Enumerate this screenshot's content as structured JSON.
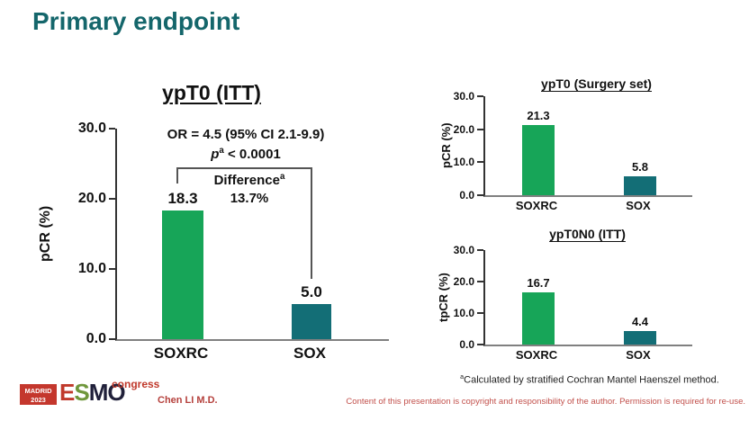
{
  "slide": {
    "title": "Primary endpoint",
    "presenter": "Chen LI M.D.",
    "copyright_notice": "Content of this presentation is copyright and responsibility of the author. Permission is required for re-use.",
    "footnote": {
      "sup": "a",
      "text": "Calculated by stratified Cochran Mantel Haenszel method."
    },
    "logo": {
      "venue": "MADRID",
      "year": "2023",
      "letters": [
        "E",
        "S",
        "M",
        "O"
      ],
      "event": "congress"
    }
  },
  "colors": {
    "heading_teal": "#14666b",
    "soxrc_green": "#17a558",
    "sox_teal": "#136e76",
    "footer_red": "#b5403c"
  },
  "chart_data": [
    {
      "type": "bar",
      "title": "ypT0 (ITT)",
      "ylabel": "pCR (%)",
      "categories": [
        "SOXRC",
        "SOX"
      ],
      "values": [
        18.3,
        5.0
      ],
      "bar_colors": [
        "#17a558",
        "#136e76"
      ],
      "yticks": [
        "30.0",
        "20.0",
        "10.0",
        "0.0"
      ],
      "ylim": [
        0,
        30
      ],
      "grid": false,
      "annotations": {
        "or_line": "OR = 4.5 (95% CI 2.1-9.9)",
        "p_var": "p",
        "p_sup": "a",
        "p_rest": " < 0.0001",
        "difference_label": "Difference",
        "difference_sup": "a",
        "difference_value": "13.7%"
      }
    },
    {
      "type": "bar",
      "title": "ypT0 (Surgery set)",
      "ylabel": "pCR (%)",
      "categories": [
        "SOXRC",
        "SOX"
      ],
      "values": [
        21.3,
        5.8
      ],
      "bar_colors": [
        "#17a558",
        "#136e76"
      ],
      "yticks": [
        "30.0",
        "20.0",
        "10.0",
        "0.0"
      ],
      "ylim": [
        0,
        30
      ],
      "grid": false
    },
    {
      "type": "bar",
      "title": "ypT0N0 (ITT)",
      "ylabel": "tpCR (%)",
      "categories": [
        "SOXRC",
        "SOX"
      ],
      "values": [
        16.7,
        4.4
      ],
      "bar_colors": [
        "#17a558",
        "#136e76"
      ],
      "yticks": [
        "30.0",
        "20.0",
        "10.0",
        "0.0"
      ],
      "ylim": [
        0,
        30
      ],
      "grid": false
    }
  ]
}
